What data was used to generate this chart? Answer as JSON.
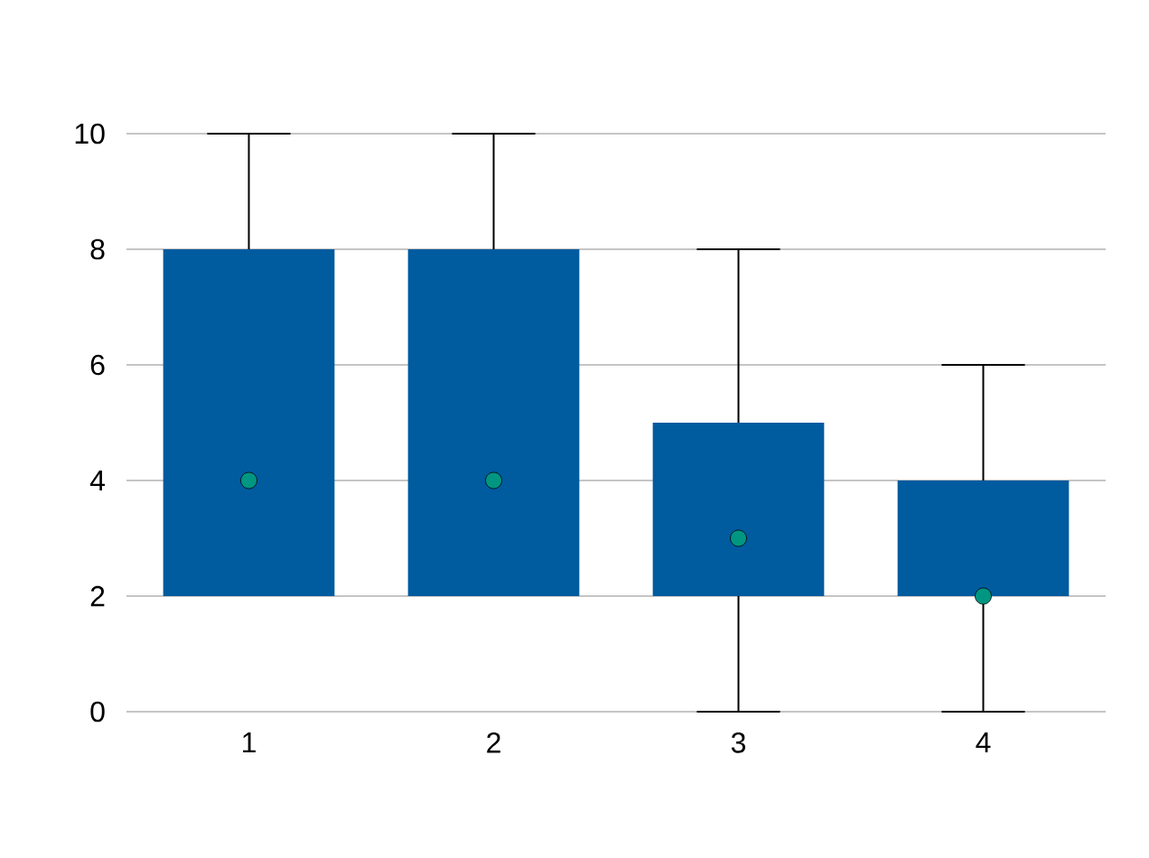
{
  "chart_data": {
    "type": "box",
    "categories": [
      "1",
      "2",
      "3",
      "4"
    ],
    "series": [
      {
        "type": "box",
        "color": "#005b9f",
        "boxes": [
          {
            "low": 2,
            "q1": 2,
            "q3": 8,
            "high": 10
          },
          {
            "low": 2,
            "q1": 2,
            "q3": 8,
            "high": 10
          },
          {
            "low": 0,
            "q1": 2,
            "q3": 5,
            "high": 8
          },
          {
            "low": 0,
            "q1": 2,
            "q3": 4,
            "high": 6
          }
        ]
      },
      {
        "type": "scatter",
        "color": "#009681",
        "x": [
          "1",
          "2",
          "3",
          "4"
        ],
        "values": [
          4,
          4,
          3,
          2
        ],
        "marker": "circle"
      }
    ],
    "ylim": [
      0,
      10
    ],
    "yticks": [
      0,
      2,
      4,
      6,
      8,
      10
    ],
    "grid": "y"
  }
}
